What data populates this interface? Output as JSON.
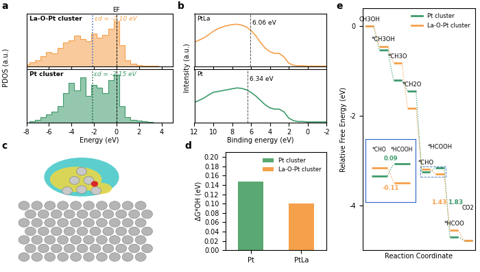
{
  "chart_data": [
    {
      "panel": "a",
      "type": "area",
      "x_label": "Energy (eV)",
      "y_label": "PDOS (a.u.)",
      "xlim": [
        -8,
        5
      ],
      "xticks": [
        -8,
        -6,
        -4,
        -2,
        0,
        2,
        4
      ],
      "ylim": [
        0,
        1
      ],
      "tick_labels": "x",
      "fermi_level": 0,
      "fermi_label": "EF",
      "x": [
        -8,
        -7.5,
        -7,
        -6.5,
        -6,
        -5.5,
        -5,
        -4.5,
        -4,
        -3.5,
        -3,
        -2.5,
        -2,
        -1.5,
        -1,
        -0.5,
        0,
        0.5,
        1,
        1.5,
        2,
        2.5,
        3,
        3.5,
        4
      ],
      "series": [
        {
          "name": "La-O-Pt cluster",
          "color": "#f5a04b",
          "d_band_center": -2.1,
          "d_band_label": "εd = -2.10 eV",
          "values": [
            0.04,
            0.08,
            0.12,
            0.2,
            0.28,
            0.25,
            0.35,
            0.45,
            0.5,
            0.58,
            0.52,
            0.48,
            0.62,
            0.55,
            0.6,
            0.72,
            0.85,
            0.4,
            0.12,
            0.06,
            0.03,
            0.02,
            0.01,
            0.01,
            0.0
          ]
        },
        {
          "name": "Pt cluster",
          "color": "#3d9a6a",
          "d_band_center": -2.15,
          "d_band_label": "εd = -2.15 eV",
          "values": [
            0.0,
            0.02,
            0.05,
            0.1,
            0.15,
            0.2,
            0.3,
            0.55,
            0.75,
            0.6,
            0.85,
            0.5,
            0.7,
            0.65,
            0.55,
            0.8,
            0.9,
            0.3,
            0.1,
            0.05,
            0.03,
            0.02,
            0.01,
            0.0,
            0.0
          ]
        }
      ]
    },
    {
      "panel": "b",
      "type": "line",
      "x_label": "Binding energy (eV)",
      "y_label": "Intensity (a.u.)",
      "xlim": [
        12,
        -2
      ],
      "xticks": [
        12,
        10,
        8,
        6,
        4,
        2,
        0,
        -2
      ],
      "ylim": [
        0,
        1.2
      ],
      "tick_labels": "x",
      "x": [
        12,
        11.5,
        11,
        10.5,
        10,
        9.5,
        9,
        8.5,
        8,
        7.5,
        7,
        6.5,
        6,
        5.5,
        5,
        4.5,
        4,
        3.5,
        3,
        2.5,
        2,
        1.5,
        1,
        0.5,
        0,
        -0.5,
        -1,
        -1.5,
        -2
      ],
      "series": [
        {
          "name": "PtLa",
          "color": "#f5a04b",
          "peak": 6.06,
          "peak_label": "6.06 eV",
          "values": [
            0.55,
            0.6,
            0.65,
            0.72,
            0.8,
            0.86,
            0.9,
            0.93,
            0.95,
            0.96,
            0.94,
            0.9,
            0.82,
            0.7,
            0.55,
            0.42,
            0.34,
            0.3,
            0.3,
            0.22,
            0.08,
            0.03,
            0.02,
            0.02,
            0.01,
            0.01,
            0.01,
            0.01,
            0.01
          ]
        },
        {
          "name": "Pt",
          "color": "#3d9a6a",
          "peak": 6.34,
          "peak_label": "6.34 eV",
          "values": [
            0.45,
            0.5,
            0.55,
            0.62,
            0.68,
            0.7,
            0.72,
            0.74,
            0.76,
            0.78,
            0.77,
            0.74,
            0.68,
            0.6,
            0.5,
            0.4,
            0.33,
            0.3,
            0.3,
            0.24,
            0.1,
            0.04,
            0.02,
            0.02,
            0.01,
            0.01,
            0.01,
            0.01,
            0.01
          ]
        }
      ]
    },
    {
      "panel": "c",
      "type": "image"
    },
    {
      "panel": "d",
      "type": "bar",
      "y_label": "ΔG*OH (eV)",
      "categories": [
        "Pt",
        "PtLa"
      ],
      "ylim": [
        0,
        0.21
      ],
      "yticks": [
        {
          "value": 0.0,
          "label": "0.00"
        },
        {
          "value": 0.02,
          "label": "0.02"
        },
        {
          "value": 0.04,
          "label": "0.04"
        },
        {
          "value": 0.06,
          "label": "0.06"
        },
        {
          "value": 0.08,
          "label": "0.08"
        },
        {
          "value": 0.1,
          "label": "0.10"
        },
        {
          "value": 0.12,
          "label": "0.12"
        },
        {
          "value": 0.14,
          "label": "0.14"
        },
        {
          "value": 0.16,
          "label": "0.16"
        },
        {
          "value": 0.18,
          "label": "0.18"
        },
        {
          "value": 0.2,
          "label": "0.20"
        }
      ],
      "legend": "upper right",
      "series": [
        {
          "name": "Pt cluster",
          "color": "#5aa872",
          "values": [
            0.148,
            null
          ]
        },
        {
          "name": "La-O-Pt cluster",
          "color": "#f5a04b",
          "values": [
            null,
            0.1
          ]
        }
      ]
    },
    {
      "panel": "e",
      "type": "step",
      "x_label": "Reaction Coordinate",
      "y_label": "Relative Free Energy (eV)",
      "categories": [
        "CH3OH",
        "*CH3OH",
        "*CH3O",
        "*CH2O",
        "*CHO",
        "*HCOOH",
        "*HCOO",
        "CO2"
      ],
      "ylim": [
        -5.0,
        0.4
      ],
      "yticks": [
        -4,
        -2,
        0
      ],
      "tick_labels": "y",
      "legend": "upper right",
      "series": [
        {
          "name": "Pt cluster",
          "color": "#3d9a6a",
          "values": [
            0,
            -0.54,
            -1.2,
            -1.45,
            -3.25,
            -3.16,
            -4.7,
            -4.79
          ]
        },
        {
          "name": "La-O-Pt cluster",
          "color": "#f5a04b",
          "values": [
            0,
            -0.45,
            -0.82,
            -1.83,
            -3.19,
            -3.3,
            -4.56,
            -4.79
          ]
        }
      ],
      "annotations": [
        {
          "text": "0.09",
          "series": "Pt cluster",
          "from": "*CHO",
          "to": "*HCOOH",
          "inset": true
        },
        {
          "text": "-0.11",
          "series": "La-O-Pt cluster",
          "from": "*CHO",
          "to": "*HCOOH",
          "inset": true
        },
        {
          "text": "1.43",
          "series": "La-O-Pt cluster",
          "from": "*HCOOH",
          "to": "*HCOO",
          "inset": false
        },
        {
          "text": "1.83",
          "series": "Pt cluster",
          "from": "*HCOOH",
          "to": "*HCOO",
          "inset": false
        }
      ]
    }
  ]
}
